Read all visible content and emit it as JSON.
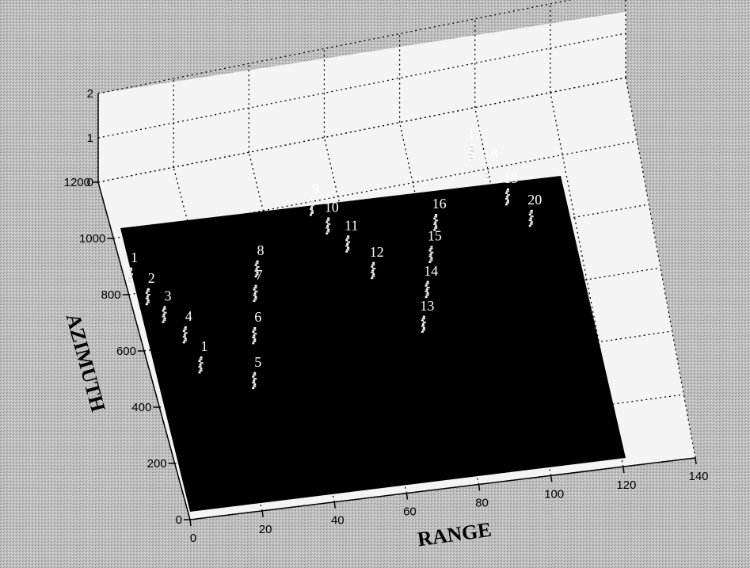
{
  "chart_data": {
    "type": "scatter",
    "title": "",
    "xlabel": "RANGE",
    "ylabel": "AZIMUTH",
    "xlim": [
      0,
      140
    ],
    "ylim": [
      0,
      1200
    ],
    "zlim": [
      0,
      2
    ],
    "x_ticks": [
      "0",
      "20",
      "40",
      "60",
      "80",
      "100",
      "120",
      "140"
    ],
    "y_ticks": [
      "0",
      "200",
      "400",
      "600",
      "800",
      "1000",
      "1200"
    ],
    "z_ticks": [
      "0",
      "1",
      "2"
    ],
    "grid": true,
    "colors": {
      "background": "#bdbdbd",
      "plane": "#000000",
      "targets": "#ffffff"
    },
    "points": [
      {
        "label": "1",
        "x": 1,
        "y": 840
      },
      {
        "label": "2",
        "x": 4,
        "y": 760
      },
      {
        "label": "3",
        "x": 7,
        "y": 690
      },
      {
        "label": "4",
        "x": 11,
        "y": 610
      },
      {
        "label": "1",
        "x": 13,
        "y": 500
      },
      {
        "label": "5",
        "x": 26,
        "y": 420
      },
      {
        "label": "6",
        "x": 29,
        "y": 570
      },
      {
        "label": "7",
        "x": 32,
        "y": 710
      },
      {
        "label": "8",
        "x": 34,
        "y": 790
      },
      {
        "label": "9",
        "x": 52,
        "y": 960
      },
      {
        "label": "10",
        "x": 55,
        "y": 890
      },
      {
        "label": "11",
        "x": 59,
        "y": 820
      },
      {
        "label": "12",
        "x": 64,
        "y": 720
      },
      {
        "label": "13",
        "x": 74,
        "y": 520
      },
      {
        "label": "14",
        "x": 77,
        "y": 630
      },
      {
        "label": "15",
        "x": 80,
        "y": 740
      },
      {
        "label": "16",
        "x": 83,
        "y": 840
      },
      {
        "label": "17",
        "x": 96,
        "y": 1040
      },
      {
        "label": "18",
        "x": 99,
        "y": 970
      },
      {
        "label": "19",
        "x": 103,
        "y": 880
      },
      {
        "label": "20",
        "x": 108,
        "y": 800
      }
    ]
  }
}
